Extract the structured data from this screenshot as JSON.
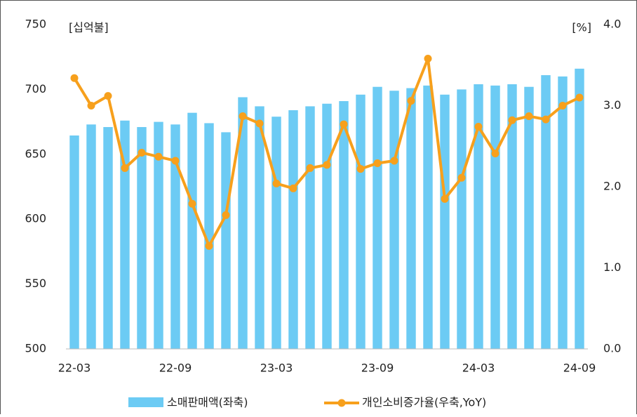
{
  "chart_data": {
    "type": "bar-line",
    "y_unit_label": "[십억불]",
    "y2_unit_label": "[%]",
    "categories": [
      "22-03",
      null,
      null,
      null,
      null,
      null,
      "22-09",
      null,
      null,
      null,
      null,
      null,
      "23-03",
      null,
      null,
      null,
      null,
      null,
      "23-09",
      null,
      null,
      null,
      null,
      null,
      "24-03",
      null,
      null,
      null,
      null,
      null,
      "24-09"
    ],
    "series": [
      {
        "name": "소매판매액(좌축)",
        "color": "#6ccbf4",
        "type": "bar",
        "axis": "y",
        "values": [
          664.5,
          673,
          671,
          676,
          671,
          675,
          673,
          682,
          674,
          667,
          694,
          687,
          679,
          684,
          687,
          689,
          691,
          696,
          702,
          699,
          701,
          703,
          696,
          700,
          704,
          703,
          704,
          702,
          711,
          710,
          716
        ]
      },
      {
        "name": "개인소비증가율(우축,YoY)",
        "color": "#f7a01c",
        "type": "line",
        "axis": "y2",
        "values": [
          3.34,
          3.0,
          3.12,
          2.23,
          2.42,
          2.37,
          2.32,
          1.79,
          1.27,
          1.65,
          2.87,
          2.78,
          2.04,
          1.98,
          2.23,
          2.27,
          2.77,
          2.22,
          2.29,
          2.32,
          3.06,
          3.58,
          1.85,
          2.11,
          2.74,
          2.41,
          2.82,
          2.87,
          2.83,
          3.0,
          3.1
        ]
      }
    ],
    "ylim": [
      500,
      750
    ],
    "yticks": [
      500,
      550,
      600,
      650,
      700,
      750
    ],
    "y2lim": [
      0,
      4
    ],
    "y2ticks": [
      {
        "value": 0,
        "label": "0.0"
      },
      {
        "value": 1,
        "label": "1.0"
      },
      {
        "value": 2,
        "label": "2.0"
      },
      {
        "value": 3,
        "label": "3.0"
      },
      {
        "value": 4,
        "label": "4.0"
      }
    ],
    "grid": false,
    "legend": "bottom"
  }
}
